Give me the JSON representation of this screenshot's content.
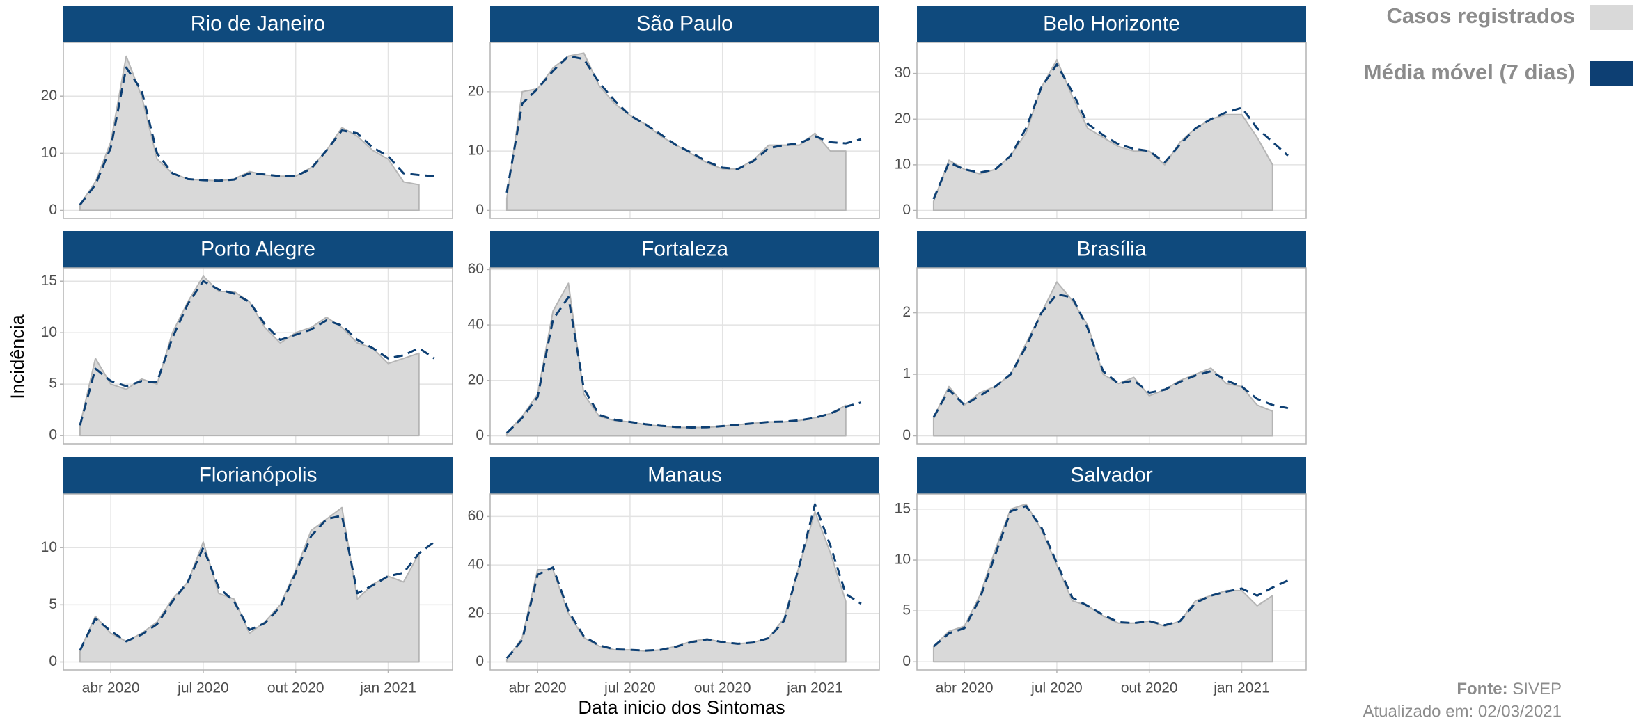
{
  "y_label": "Incidência",
  "x_label": "Data inicio dos Sintomas",
  "source": {
    "label": "Fonte:",
    "text": "SIVEP"
  },
  "updated": "Atualizado em: 02/03/2021",
  "chart_data": [
    {
      "type": "area",
      "title": "Rio de Janeiro",
      "grid": true,
      "x": [
        2,
        2.5,
        3,
        3.5,
        4,
        4.5,
        5,
        5.5,
        6,
        6.5,
        7,
        7.5,
        8,
        8.5,
        9,
        9.5,
        10,
        10.5,
        11,
        11.5,
        12,
        12.5,
        13,
        13.5
      ],
      "xlim": [
        1.46,
        14.09
      ],
      "xticks": [
        3,
        6,
        9,
        12
      ],
      "ylim": [
        -1.4,
        29.4
      ],
      "yticks": [
        0,
        10,
        20
      ],
      "series": [
        {
          "name": "Casos registrados",
          "type": "area",
          "color": "#d9d9d9",
          "values": [
            1,
            5,
            12,
            27,
            20,
            9,
            6.5,
            5.5,
            5.3,
            5.2,
            5.5,
            6.8,
            6.2,
            6,
            6,
            7.5,
            10.5,
            14.5,
            13,
            10.5,
            9,
            5,
            4.5,
            null
          ]
        },
        {
          "name": "Média móvel (7 dias)",
          "type": "line",
          "dash": "dashed",
          "color": "#0d3f73",
          "values": [
            1,
            4.5,
            11,
            25,
            21,
            10,
            6.5,
            5.5,
            5.3,
            5.2,
            5.4,
            6.5,
            6.3,
            6,
            6,
            7.3,
            10.5,
            14,
            13.5,
            11,
            9.5,
            6.5,
            6.2,
            6
          ]
        }
      ]
    },
    {
      "type": "area",
      "title": "São Paulo",
      "grid": true,
      "x": [
        2,
        2.5,
        3,
        3.5,
        4,
        4.5,
        5,
        5.5,
        6,
        6.5,
        7,
        7.5,
        8,
        8.5,
        9,
        9.5,
        10,
        10.5,
        11,
        11.5,
        12,
        12.5,
        13,
        13.5
      ],
      "xlim": [
        1.46,
        14.09
      ],
      "xticks": [
        3,
        6,
        9,
        12
      ],
      "ylim": [
        -1.35,
        28.3
      ],
      "yticks": [
        0,
        10,
        20
      ],
      "series": [
        {
          "type": "area",
          "color": "#d9d9d9",
          "values": [
            2,
            20,
            20.5,
            24,
            26,
            26.5,
            21,
            18,
            16,
            14.5,
            12.5,
            11,
            9.5,
            8,
            7,
            7,
            8.5,
            11,
            11,
            11,
            13,
            10,
            10,
            null
          ]
        },
        {
          "type": "line",
          "dash": "dashed",
          "color": "#0d3f73",
          "values": [
            3,
            18,
            20.5,
            23.5,
            26,
            25.5,
            21.5,
            18.5,
            16,
            14.5,
            12.8,
            11,
            9.7,
            8.2,
            7.2,
            7,
            8.3,
            10.5,
            11,
            11.3,
            12.5,
            11.5,
            11.3,
            12
          ]
        }
      ]
    },
    {
      "type": "area",
      "title": "Belo Horizonte",
      "grid": true,
      "x": [
        2,
        2.5,
        3,
        3.5,
        4,
        4.5,
        5,
        5.5,
        6,
        6.5,
        7,
        7.5,
        8,
        8.5,
        9,
        9.5,
        10,
        10.5,
        11,
        11.5,
        12,
        12.5,
        13,
        13.5
      ],
      "xlim": [
        1.46,
        14.09
      ],
      "xticks": [
        3,
        6,
        9,
        12
      ],
      "ylim": [
        -1.75,
        36.8
      ],
      "yticks": [
        0,
        10,
        20,
        30
      ],
      "series": [
        {
          "type": "area",
          "color": "#d9d9d9",
          "values": [
            2,
            11,
            9,
            8,
            9,
            12,
            17,
            27,
            33,
            25,
            18,
            16,
            14,
            13,
            13,
            10,
            15,
            18,
            20,
            21,
            21,
            16,
            10,
            null
          ]
        },
        {
          "type": "line",
          "dash": "dashed",
          "color": "#0d3f73",
          "values": [
            2.5,
            10.5,
            9,
            8.3,
            9,
            12,
            18,
            27,
            32,
            26,
            19,
            16.5,
            14.5,
            13.5,
            13,
            10.5,
            14.5,
            18,
            20,
            21.5,
            22.5,
            18,
            15,
            12
          ]
        }
      ]
    },
    {
      "type": "area",
      "title": "Porto Alegre",
      "grid": true,
      "x": [
        2,
        2.5,
        3,
        3.5,
        4,
        4.5,
        5,
        5.5,
        6,
        6.5,
        7,
        7.5,
        8,
        8.5,
        9,
        9.5,
        10,
        10.5,
        11,
        11.5,
        12,
        12.5,
        13,
        13.5
      ],
      "xlim": [
        1.46,
        14.09
      ],
      "xticks": [
        3,
        6,
        9,
        12
      ],
      "ylim": [
        -0.8,
        16.3
      ],
      "yticks": [
        0,
        5,
        10,
        15
      ],
      "series": [
        {
          "type": "area",
          "color": "#d9d9d9",
          "values": [
            1,
            7.5,
            5,
            4.5,
            5.5,
            5,
            10,
            13,
            15.5,
            14,
            14,
            13,
            10.5,
            9,
            10,
            10.5,
            11.5,
            10.5,
            9,
            8.5,
            7,
            7.5,
            8,
            null
          ]
        },
        {
          "type": "line",
          "dash": "dashed",
          "color": "#0d3f73",
          "values": [
            1,
            6.5,
            5.3,
            4.8,
            5.3,
            5.2,
            9.5,
            12.8,
            15,
            14.2,
            13.8,
            13,
            10.8,
            9.3,
            9.8,
            10.3,
            11.2,
            10.7,
            9.3,
            8.5,
            7.5,
            7.8,
            8.5,
            7.5
          ]
        }
      ]
    },
    {
      "type": "area",
      "title": "Fortaleza",
      "grid": true,
      "x": [
        2,
        2.5,
        3,
        3.5,
        4,
        4.5,
        5,
        5.5,
        6,
        6.5,
        7,
        7.5,
        8,
        8.5,
        9,
        9.5,
        10,
        10.5,
        11,
        11.5,
        12,
        12.5,
        13,
        13.5
      ],
      "xlim": [
        1.46,
        14.09
      ],
      "xticks": [
        3,
        6,
        9,
        12
      ],
      "ylim": [
        -2.9,
        60.6
      ],
      "yticks": [
        0,
        20,
        40,
        60
      ],
      "series": [
        {
          "type": "area",
          "color": "#d9d9d9",
          "values": [
            1,
            7,
            15,
            45,
            55,
            15,
            7,
            5.5,
            5,
            4,
            3.5,
            3,
            3,
            3,
            3.5,
            4,
            4.5,
            5,
            5,
            5.5,
            6.5,
            8,
            11,
            null
          ]
        },
        {
          "type": "line",
          "dash": "dashed",
          "color": "#0d3f73",
          "values": [
            1,
            6.5,
            14,
            42,
            50,
            17,
            7.5,
            5.8,
            5,
            4.2,
            3.6,
            3.2,
            3,
            3.1,
            3.5,
            4,
            4.5,
            5,
            5.1,
            5.6,
            6.5,
            8,
            10.5,
            12
          ]
        }
      ]
    },
    {
      "type": "area",
      "title": "Brasília",
      "grid": true,
      "x": [
        2,
        2.5,
        3,
        3.5,
        4,
        4.5,
        5,
        5.5,
        6,
        6.5,
        7,
        7.5,
        8,
        8.5,
        9,
        9.5,
        10,
        10.5,
        11,
        11.5,
        12,
        12.5,
        13,
        13.5
      ],
      "xlim": [
        1.46,
        14.09
      ],
      "xticks": [
        3,
        6,
        9,
        12
      ],
      "ylim": [
        -0.13,
        2.73
      ],
      "yticks": [
        0,
        1,
        2
      ],
      "series": [
        {
          "type": "area",
          "color": "#d9d9d9",
          "values": [
            0.3,
            0.8,
            0.5,
            0.7,
            0.8,
            1.0,
            1.5,
            2.0,
            2.5,
            2.2,
            1.8,
            1.0,
            0.85,
            0.95,
            0.65,
            0.75,
            0.9,
            1.0,
            1.1,
            0.85,
            0.8,
            0.5,
            0.4,
            null
          ]
        },
        {
          "type": "line",
          "dash": "dashed",
          "color": "#0d3f73",
          "values": [
            0.3,
            0.75,
            0.5,
            0.65,
            0.8,
            1.0,
            1.45,
            2.0,
            2.3,
            2.25,
            1.75,
            1.05,
            0.85,
            0.9,
            0.7,
            0.75,
            0.88,
            0.98,
            1.05,
            0.9,
            0.8,
            0.6,
            0.5,
            0.45
          ]
        }
      ]
    },
    {
      "type": "area",
      "title": "Florianópolis",
      "grid": true,
      "x": [
        2,
        2.5,
        3,
        3.5,
        4,
        4.5,
        5,
        5.5,
        6,
        6.5,
        7,
        7.5,
        8,
        8.5,
        9,
        9.5,
        10,
        10.5,
        11,
        11.5,
        12,
        12.5,
        13,
        13.5
      ],
      "xlim": [
        1.46,
        14.09
      ],
      "xticks": [
        {
          "value": 3,
          "label": "abr 2020"
        },
        {
          "value": 6,
          "label": "jul 2020"
        },
        {
          "value": 9,
          "label": "out 2020"
        },
        {
          "value": 12,
          "label": "jan 2021"
        }
      ],
      "ylim": [
        -0.7,
        14.7
      ],
      "yticks": [
        0,
        5,
        10
      ],
      "series": [
        {
          "type": "area",
          "color": "#d9d9d9",
          "values": [
            1,
            4,
            2.5,
            1.8,
            2.5,
            3.5,
            5.5,
            7,
            10.5,
            6,
            5.5,
            2.5,
            3.5,
            5,
            8,
            11.5,
            12.5,
            13.5,
            5.5,
            6.8,
            7.5,
            7,
            9.5,
            null
          ]
        },
        {
          "type": "line",
          "dash": "dashed",
          "color": "#0d3f73",
          "values": [
            1,
            3.8,
            2.7,
            1.8,
            2.4,
            3.3,
            5.3,
            7,
            10,
            6.5,
            5.3,
            2.8,
            3.4,
            4.8,
            7.8,
            11,
            12.5,
            12.8,
            6,
            6.7,
            7.5,
            7.8,
            9.5,
            10.5
          ]
        }
      ]
    },
    {
      "type": "area",
      "title": "Manaus",
      "grid": true,
      "x": [
        2,
        2.5,
        3,
        3.5,
        4,
        4.5,
        5,
        5.5,
        6,
        6.5,
        7,
        7.5,
        8,
        8.5,
        9,
        9.5,
        10,
        10.5,
        11,
        11.5,
        12,
        12.5,
        13,
        13.5
      ],
      "xlim": [
        1.46,
        14.09
      ],
      "xticks": [
        {
          "value": 3,
          "label": "abr 2020"
        },
        {
          "value": 6,
          "label": "jul 2020"
        },
        {
          "value": 9,
          "label": "out 2020"
        },
        {
          "value": 12,
          "label": "jan 2021"
        }
      ],
      "ylim": [
        -3.3,
        69.3
      ],
      "yticks": [
        0,
        20,
        40,
        60
      ],
      "series": [
        {
          "type": "area",
          "color": "#d9d9d9",
          "values": [
            1,
            10,
            38,
            38,
            20,
            10,
            6.5,
            5,
            5,
            4.5,
            5,
            6.5,
            8.5,
            9.5,
            8,
            7.5,
            8,
            10,
            18,
            40,
            62,
            45,
            25,
            null
          ]
        },
        {
          "type": "line",
          "dash": "dashed",
          "color": "#0d3f73",
          "values": [
            1.5,
            9,
            36,
            39,
            21,
            10.5,
            6.8,
            5.2,
            5,
            4.7,
            5,
            6.3,
            8.2,
            9.3,
            8.2,
            7.5,
            8,
            9.8,
            17,
            40,
            65,
            48,
            28,
            24
          ]
        }
      ]
    },
    {
      "type": "area",
      "title": "Salvador",
      "grid": true,
      "x": [
        2,
        2.5,
        3,
        3.5,
        4,
        4.5,
        5,
        5.5,
        6,
        6.5,
        7,
        7.5,
        8,
        8.5,
        9,
        9.5,
        10,
        10.5,
        11,
        11.5,
        12,
        12.5,
        13,
        13.5
      ],
      "xlim": [
        1.46,
        14.09
      ],
      "xticks": [
        {
          "value": 3,
          "label": "abr 2020"
        },
        {
          "value": 6,
          "label": "jul 2020"
        },
        {
          "value": 9,
          "label": "out 2020"
        },
        {
          "value": 12,
          "label": "jan 2021"
        }
      ],
      "ylim": [
        -0.8,
        16.5
      ],
      "yticks": [
        0,
        5,
        10,
        15
      ],
      "series": [
        {
          "type": "area",
          "color": "#d9d9d9",
          "values": [
            1.5,
            3,
            3.5,
            6.5,
            11,
            15,
            15.5,
            13,
            9.5,
            6,
            5.5,
            4.5,
            3.8,
            3.8,
            4,
            3.5,
            4,
            6,
            6.5,
            7,
            7,
            5.5,
            6.5,
            null
          ]
        },
        {
          "type": "line",
          "dash": "dashed",
          "color": "#0d3f73",
          "values": [
            1.5,
            2.8,
            3.3,
            6.2,
            10.5,
            14.8,
            15.3,
            13.2,
            9.7,
            6.3,
            5.5,
            4.6,
            3.9,
            3.8,
            4,
            3.6,
            4,
            5.8,
            6.5,
            6.9,
            7.2,
            6.5,
            7.3,
            8
          ]
        }
      ]
    }
  ]
}
